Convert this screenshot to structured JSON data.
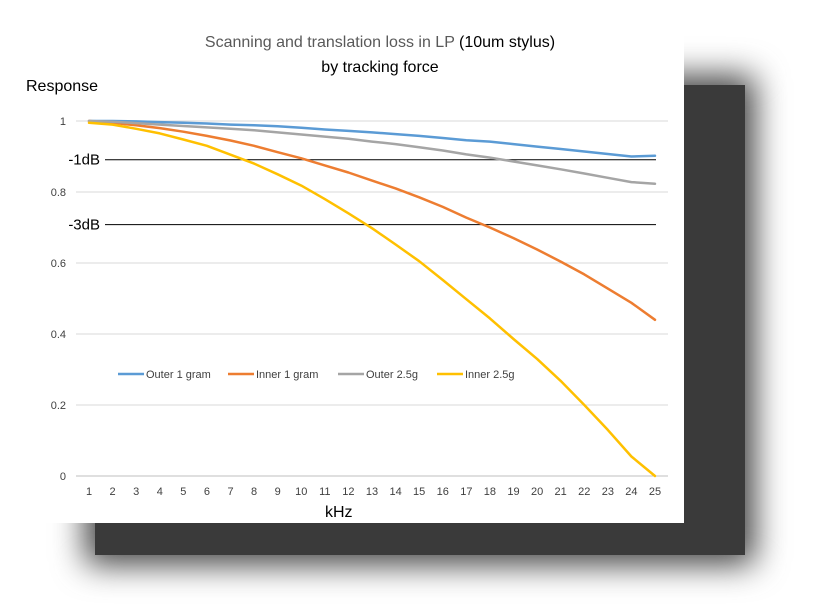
{
  "chart_data": {
    "type": "line",
    "title": "Scanning and translation loss in LP",
    "title_suffix": "(10um stylus)",
    "subtitle": "by tracking force",
    "ylabel": "Response",
    "xlabel": "kHz",
    "ylim": [
      0,
      1
    ],
    "yticks": [
      "0",
      "0.2",
      "0.4",
      "0.6",
      "0.8",
      "1"
    ],
    "grid": true,
    "legend_position": "inside-lower-left",
    "x": [
      "1",
      "2",
      "3",
      "4",
      "5",
      "6",
      "7",
      "8",
      "9",
      "10",
      "11",
      "12",
      "13",
      "14",
      "15",
      "16",
      "17",
      "18",
      "19",
      "20",
      "21",
      "22",
      "23",
      "24",
      "25"
    ],
    "series": [
      {
        "name": "Outer 1 gram",
        "color": "#5B9BD5",
        "values": [
          1.0,
          1.0,
          0.999,
          0.997,
          0.995,
          0.993,
          0.99,
          0.988,
          0.985,
          0.981,
          0.976,
          0.972,
          0.968,
          0.963,
          0.958,
          0.952,
          0.946,
          0.942,
          0.935,
          0.928,
          0.921,
          0.914,
          0.907,
          0.9,
          0.902
        ]
      },
      {
        "name": "Inner 1 gram",
        "color": "#ED7D31",
        "values": [
          1.0,
          0.995,
          0.988,
          0.98,
          0.97,
          0.958,
          0.945,
          0.93,
          0.912,
          0.895,
          0.875,
          0.855,
          0.832,
          0.81,
          0.785,
          0.758,
          0.728,
          0.7,
          0.67,
          0.638,
          0.604,
          0.568,
          0.528,
          0.488,
          0.44
        ]
      },
      {
        "name": "Outer 2.5g",
        "color": "#A5A5A5",
        "values": [
          1.0,
          0.998,
          0.994,
          0.99,
          0.986,
          0.982,
          0.978,
          0.974,
          0.968,
          0.962,
          0.956,
          0.95,
          0.942,
          0.935,
          0.926,
          0.917,
          0.906,
          0.897,
          0.886,
          0.875,
          0.864,
          0.852,
          0.84,
          0.828,
          0.823
        ]
      },
      {
        "name": "Inner 2.5g",
        "color": "#FFC000",
        "values": [
          0.995,
          0.99,
          0.978,
          0.965,
          0.948,
          0.93,
          0.905,
          0.88,
          0.85,
          0.818,
          0.78,
          0.74,
          0.698,
          0.652,
          0.605,
          0.552,
          0.498,
          0.444,
          0.386,
          0.33,
          0.268,
          0.2,
          0.13,
          0.055,
          0.0
        ]
      }
    ],
    "reference_lines": [
      {
        "label": "-1dB",
        "y": 0.891
      },
      {
        "label": "-3dB",
        "y": 0.708
      }
    ]
  }
}
